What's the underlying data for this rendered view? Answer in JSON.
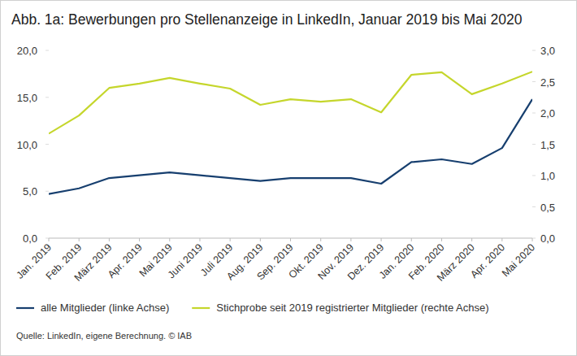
{
  "chart_data": {
    "type": "line",
    "title": "Abb. 1a: Bewerbungen pro Stellenanzeige in LinkedIn, Januar 2019 bis Mai 2020",
    "source": "Quelle: LinkedIn, eigene Berechnung. © IAB",
    "categories": [
      "Jan. 2019",
      "Feb. 2019",
      "März 2019",
      "Apr. 2019",
      "Mai 2019",
      "Juni 2019",
      "Juli 2019",
      "Aug. 2019",
      "Sep. 2019",
      "Okt. 2019",
      "Nov. 2019",
      "Dez. 2019",
      "Jan. 2020",
      "Feb. 2020",
      "März 2020",
      "Apr. 2020",
      "Mai 2020"
    ],
    "series": [
      {
        "name": "alle Mitglieder (linke Achse)",
        "color": "#173f6f",
        "values": [
          4.7,
          5.3,
          6.4,
          6.7,
          7.0,
          6.7,
          6.4,
          6.1,
          6.4,
          6.4,
          6.4,
          5.8,
          8.1,
          8.4,
          7.9,
          9.6,
          14.8
        ]
      },
      {
        "name": "Stichprobe seit 2019 registrierter Mitglieder (rechte Achse)",
        "color": "#c5d62c",
        "axis": "y2",
        "values": [
          1.67,
          1.96,
          2.4,
          2.47,
          2.56,
          2.47,
          2.39,
          2.13,
          2.22,
          2.18,
          2.22,
          2.01,
          2.61,
          2.65,
          2.3,
          2.47,
          2.66
        ]
      }
    ],
    "ylim": [
      0,
      20
    ],
    "yticks": [
      {
        "value": 0,
        "label": "0,0"
      },
      {
        "value": 5,
        "label": "5,0"
      },
      {
        "value": 10,
        "label": "10,0"
      },
      {
        "value": 15,
        "label": "15,0"
      },
      {
        "value": 20,
        "label": "20,0"
      }
    ],
    "y2lim": [
      0,
      3
    ],
    "y2ticks": [
      {
        "value": 0,
        "label": "0,0"
      },
      {
        "value": 0.5,
        "label": "0,5"
      },
      {
        "value": 1,
        "label": "1,0"
      },
      {
        "value": 1.5,
        "label": "1,5"
      },
      {
        "value": 2,
        "label": "2,0"
      },
      {
        "value": 2.5,
        "label": "2,5"
      },
      {
        "value": 3,
        "label": "3,0"
      }
    ],
    "grid": false,
    "legend": "bottom"
  }
}
